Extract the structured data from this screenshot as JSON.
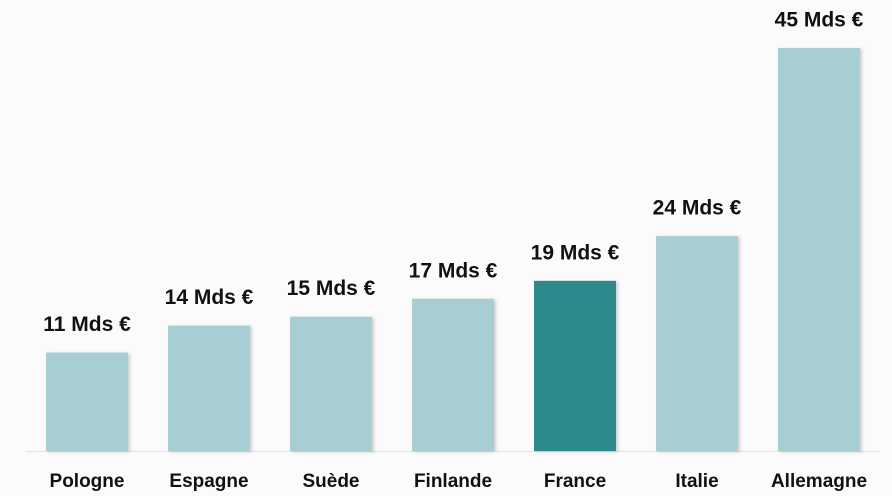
{
  "chart_data": {
    "type": "bar",
    "categories": [
      "Pologne",
      "Espagne",
      "Suède",
      "Finlande",
      "France",
      "Italie",
      "Allemagne"
    ],
    "values": [
      11,
      14,
      15,
      17,
      19,
      24,
      45
    ],
    "value_labels": [
      "11 Mds €",
      "14 Mds €",
      "15 Mds €",
      "17 Mds €",
      "19 Mds €",
      "24 Mds €",
      "45 Mds €"
    ],
    "colors": [
      "#a7cfd3",
      "#a7cfd3",
      "#a7cfd3",
      "#a7cfd3",
      "#2e8a8a",
      "#a7cfd3",
      "#a7cfd3"
    ],
    "ylim": [
      0,
      45
    ]
  }
}
